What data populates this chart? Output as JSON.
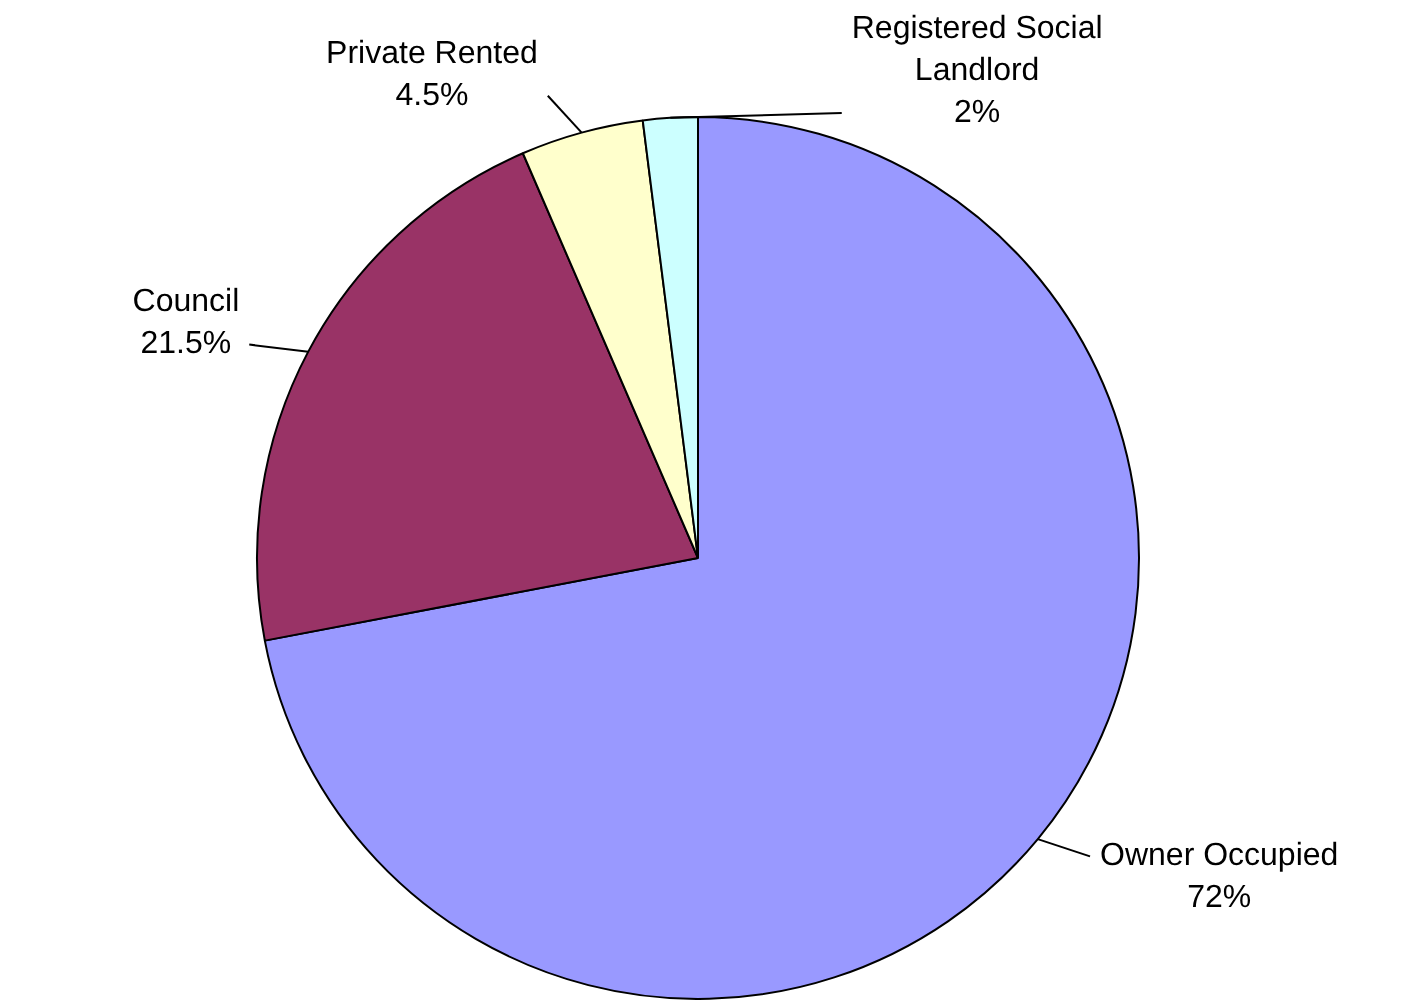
{
  "chart_data": {
    "type": "pie",
    "categories": [
      "Owner Occupied",
      "Council",
      "Private Rented",
      "Registered Social Landlord"
    ],
    "values": [
      72,
      21.5,
      4.5,
      2
    ],
    "colors": [
      "#9999ff",
      "#993366",
      "#ffffcc",
      "#ccffff"
    ],
    "value_labels": [
      "72%",
      "21.5%",
      "4.5%",
      "2%"
    ],
    "legend": false
  }
}
